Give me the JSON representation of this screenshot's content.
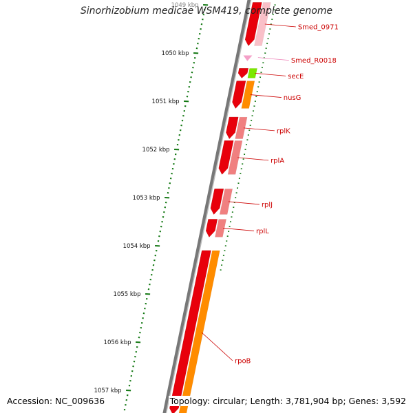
{
  "title": "Sinorhizobium medicae WSM419, complete genome",
  "accession": {
    "label": "Accession:",
    "value": "NC_009636"
  },
  "footer": {
    "topology_label": "Topology:",
    "topology": "circular",
    "length_label": "Length:",
    "length": "3,781,904 bp",
    "genes_label": "Genes:",
    "genes": "3,592"
  },
  "colors": {
    "cds": "#e8000b",
    "cds_light": "#f08080",
    "rna": "#f4a0c8",
    "orange": "#ff8c00",
    "green": "#7ce800",
    "backbone": "#777777",
    "tick": "#117711",
    "label_cds": "#cc0000",
    "label_rna": "#ee88bb"
  },
  "kbp_ticks": [
    {
      "label": "1049 kbp",
      "kbp": 1049
    },
    {
      "label": "1050 kbp",
      "kbp": 1050
    },
    {
      "label": "1051 kbp",
      "kbp": 1051
    },
    {
      "label": "1052 kbp",
      "kbp": 1052
    },
    {
      "label": "1053 kbp",
      "kbp": 1053
    },
    {
      "label": "1054 kbp",
      "kbp": 1054
    },
    {
      "label": "1055 kbp",
      "kbp": 1055
    },
    {
      "label": "1056 kbp",
      "kbp": 1056
    },
    {
      "label": "1057 kbp",
      "kbp": 1057
    }
  ],
  "genes": [
    {
      "name": "Smed_0971",
      "start": 1048.95,
      "end": 1049.85,
      "strand": "-",
      "type": "cds"
    },
    {
      "name": "Smed_R0018",
      "start": 1050.05,
      "end": 1050.14,
      "strand": "-",
      "type": "rna"
    },
    {
      "name": "secE",
      "start": 1050.32,
      "end": 1050.52,
      "strand": "-",
      "type": "cds"
    },
    {
      "name": "nusG",
      "start": 1050.58,
      "end": 1051.15,
      "strand": "-",
      "type": "cds"
    },
    {
      "name": "rplK",
      "start": 1051.33,
      "end": 1051.78,
      "strand": "-",
      "type": "cds"
    },
    {
      "name": "rplA",
      "start": 1051.82,
      "end": 1052.52,
      "strand": "-",
      "type": "cds"
    },
    {
      "name": "rplJ",
      "start": 1052.82,
      "end": 1053.35,
      "strand": "-",
      "type": "cds"
    },
    {
      "name": "rplL",
      "start": 1053.45,
      "end": 1053.82,
      "strand": "-",
      "type": "cds"
    },
    {
      "name": "rpoB",
      "start": 1054.1,
      "end": 1057.5,
      "strand": "-",
      "type": "cds"
    }
  ]
}
